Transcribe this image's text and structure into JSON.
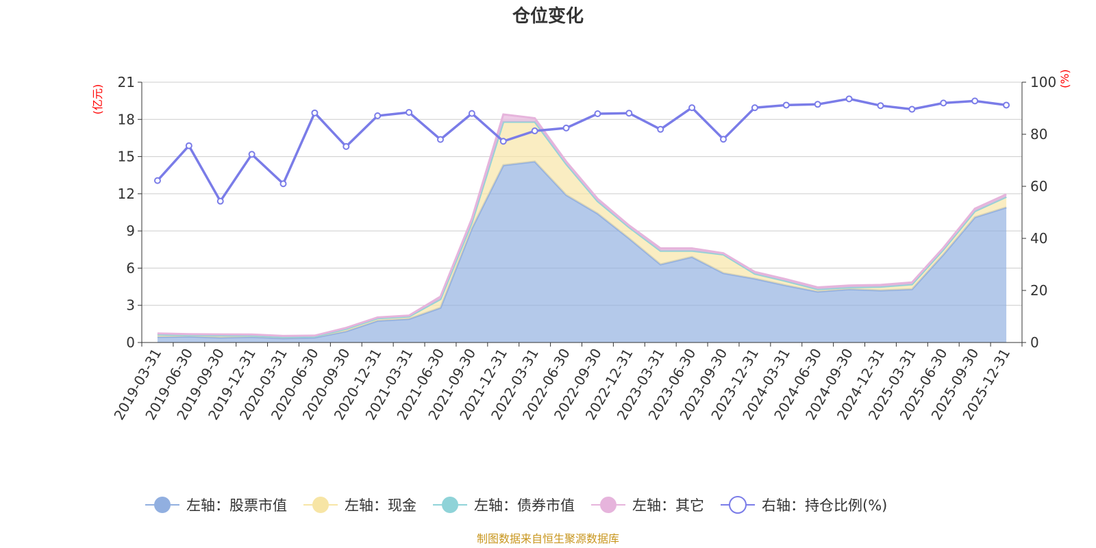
{
  "chart_data": {
    "type": "area",
    "title": "仓位变化",
    "left_unit": "(亿元)",
    "right_unit": "(%)",
    "left_ylim": [
      0,
      21
    ],
    "left_ticks": [
      "0",
      "3",
      "6",
      "9",
      "12",
      "15",
      "18",
      "21"
    ],
    "right_ylim": [
      0,
      100
    ],
    "right_ticks": [
      "0",
      "20",
      "40",
      "60",
      "80",
      "100"
    ],
    "categories": [
      "2019-03-31",
      "2019-06-30",
      "2019-09-30",
      "2019-12-31",
      "2020-03-31",
      "2020-06-30",
      "2020-09-30",
      "2020-12-31",
      "2021-03-31",
      "2021-06-30",
      "2021-09-30",
      "2021-12-31",
      "2022-03-31",
      "2022-06-30",
      "2022-09-30",
      "2022-12-31",
      "2023-03-31",
      "2023-06-30",
      "2023-09-30",
      "2023-12-31",
      "2024-03-31",
      "2024-06-30",
      "2024-09-30",
      "2024-12-31",
      "2025-03-31",
      "2025-06-30",
      "2025-09-30",
      "2025-12-31"
    ],
    "series": [
      {
        "name": "左轴：股票市值",
        "axis": "left",
        "color": "#91afe0",
        "values": [
          0.45,
          0.48,
          0.4,
          0.45,
          0.35,
          0.4,
          0.9,
          1.75,
          1.9,
          2.8,
          9.2,
          14.3,
          14.6,
          11.9,
          10.4,
          8.4,
          6.3,
          6.9,
          5.6,
          5.15,
          4.6,
          4.1,
          4.3,
          4.2,
          4.3,
          7.1,
          10.1,
          10.9
        ]
      },
      {
        "name": "左轴：现金",
        "axis": "left",
        "color": "#f7e5a5",
        "values": [
          0.2,
          0.12,
          0.18,
          0.12,
          0.1,
          0.08,
          0.2,
          0.2,
          0.2,
          0.7,
          0.5,
          3.5,
          3.2,
          2.5,
          1.0,
          0.9,
          1.1,
          0.5,
          1.5,
          0.4,
          0.35,
          0.2,
          0.15,
          0.3,
          0.4,
          0.4,
          0.5,
          0.85
        ]
      },
      {
        "name": "左轴：债券市值",
        "axis": "left",
        "color": "#8fd3d8",
        "values": [
          0,
          0,
          0,
          0,
          0,
          0,
          0,
          0,
          0,
          0,
          0,
          0,
          0,
          0,
          0,
          0,
          0,
          0,
          0,
          0,
          0,
          0,
          0,
          0,
          0,
          0,
          0,
          0
        ]
      },
      {
        "name": "左轴：其它",
        "axis": "left",
        "color": "#e6b4dc",
        "values": [
          0.08,
          0.08,
          0.08,
          0.08,
          0.08,
          0.08,
          0.08,
          0.08,
          0.08,
          0.2,
          0.3,
          0.6,
          0.3,
          0.2,
          0.2,
          0.15,
          0.2,
          0.2,
          0.1,
          0.15,
          0.15,
          0.15,
          0.15,
          0.15,
          0.15,
          0.15,
          0.2,
          0.2
        ]
      },
      {
        "name": "右轴：持仓比例(%)",
        "axis": "right",
        "color": "#7a7ce8",
        "values": [
          62.2,
          75.6,
          54.3,
          72.3,
          61.0,
          88.2,
          75.3,
          87.1,
          88.4,
          78.0,
          88.0,
          77.3,
          81.3,
          82.4,
          87.9,
          88.1,
          81.9,
          90.2,
          78.1,
          90.2,
          91.2,
          91.5,
          93.6,
          91.0,
          89.6,
          92.0,
          92.8,
          91.2
        ]
      }
    ]
  },
  "source_note": "制图数据来自恒生聚源数据库"
}
